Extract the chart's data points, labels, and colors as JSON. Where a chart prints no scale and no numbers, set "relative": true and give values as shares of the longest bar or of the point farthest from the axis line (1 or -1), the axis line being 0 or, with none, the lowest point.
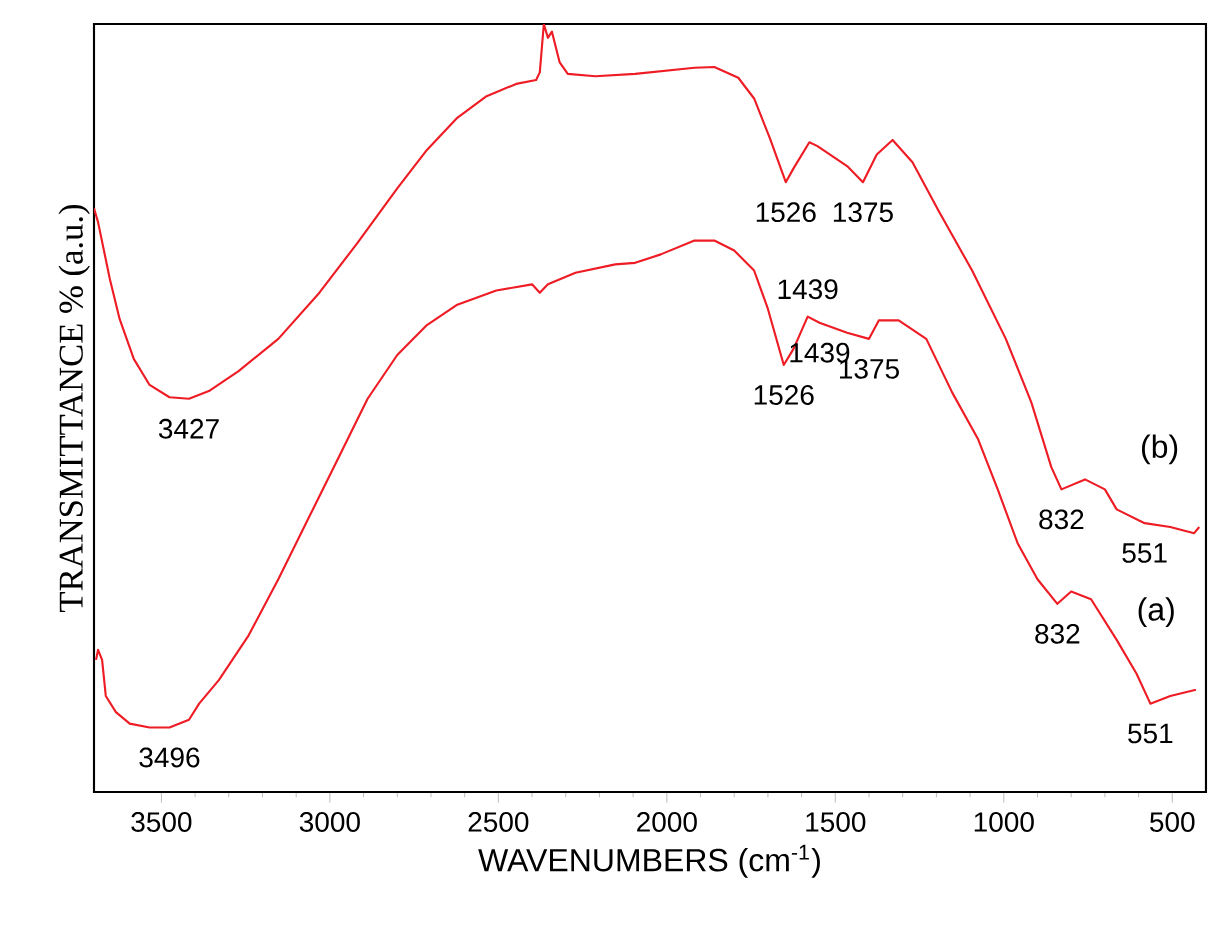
{
  "chart_data": {
    "type": "line",
    "relative": true,
    "xlabel": "WAVENUMBERS (cm$^{-1}$)",
    "ylabel": "TRANSMITTANCE % (a.u.)",
    "xlim": [
      3700,
      400
    ],
    "xticks": [
      3500,
      3000,
      2500,
      2000,
      1500,
      1000,
      500
    ],
    "series": [
      {
        "name": "(b)",
        "color": "#ee1c24",
        "x": [
          3700,
          3688,
          3653,
          3624,
          3582,
          3535,
          3476,
          3418,
          3359,
          3271,
          3153,
          3035,
          2918,
          2800,
          2712,
          2624,
          2535,
          2447,
          2388,
          2377,
          2365,
          2353,
          2341,
          2318,
          2294,
          2212,
          2094,
          1918,
          1859,
          1788,
          1741,
          1694,
          1647,
          1624,
          1577,
          1553,
          1465,
          1418,
          1377,
          1330,
          1271,
          1194,
          1094,
          994,
          918,
          859,
          829,
          759,
          700,
          665,
          582,
          506,
          435,
          420
        ],
        "values": [
          0.76,
          0.742,
          0.668,
          0.616,
          0.564,
          0.53,
          0.514,
          0.512,
          0.522,
          0.548,
          0.59,
          0.648,
          0.715,
          0.786,
          0.836,
          0.877,
          0.906,
          0.922,
          0.927,
          0.937,
          1.0,
          0.982,
          0.99,
          0.95,
          0.935,
          0.932,
          0.935,
          0.943,
          0.944,
          0.93,
          0.903,
          0.851,
          0.794,
          0.812,
          0.846,
          0.841,
          0.815,
          0.794,
          0.83,
          0.849,
          0.82,
          0.757,
          0.679,
          0.59,
          0.507,
          0.423,
          0.394,
          0.407,
          0.394,
          0.368,
          0.35,
          0.345,
          0.337,
          0.345
        ]
      },
      {
        "name": "(a)",
        "color": "#ee1c24",
        "x": [
          3694,
          3688,
          3676,
          3665,
          3635,
          3594,
          3535,
          3476,
          3418,
          3388,
          3329,
          3241,
          3153,
          3065,
          2977,
          2888,
          2800,
          2712,
          2624,
          2506,
          2400,
          2377,
          2353,
          2271,
          2153,
          2094,
          2018,
          1918,
          1859,
          1800,
          1741,
          1700,
          1653,
          1624,
          1582,
          1547,
          1465,
          1400,
          1371,
          1312,
          1230,
          1153,
          1077,
          1018,
          959,
          900,
          841,
          800,
          741,
          665,
          606,
          565,
          506,
          430
        ],
        "values": [
          0.172,
          0.185,
          0.172,
          0.125,
          0.104,
          0.089,
          0.084,
          0.084,
          0.094,
          0.115,
          0.146,
          0.204,
          0.277,
          0.355,
          0.433,
          0.512,
          0.569,
          0.608,
          0.634,
          0.653,
          0.661,
          0.65,
          0.661,
          0.676,
          0.687,
          0.689,
          0.7,
          0.718,
          0.718,
          0.705,
          0.679,
          0.629,
          0.556,
          0.577,
          0.619,
          0.611,
          0.598,
          0.59,
          0.614,
          0.614,
          0.59,
          0.52,
          0.46,
          0.394,
          0.324,
          0.277,
          0.245,
          0.261,
          0.251,
          0.198,
          0.154,
          0.115,
          0.125,
          0.133
        ]
      }
    ],
    "annotations": [
      {
        "text": "3427",
        "x": 3418,
        "y": 0.512
      },
      {
        "text": "3496",
        "x": 3476,
        "y": 0.084
      },
      {
        "text": "1526",
        "x": 1647,
        "y": 0.794
      },
      {
        "text": "1375",
        "x": 1418,
        "y": 0.794
      },
      {
        "text": "1439",
        "x": 1582,
        "y": 0.619
      },
      {
        "text": "1439",
        "x": 1547,
        "y": 0.611
      },
      {
        "text": "1526",
        "x": 1653,
        "y": 0.556
      },
      {
        "text": "1375",
        "x": 1400,
        "y": 0.59
      },
      {
        "text": "551",
        "x": 582,
        "y": 0.35
      },
      {
        "text": "832",
        "x": 829,
        "y": 0.394
      },
      {
        "text": "832",
        "x": 841,
        "y": 0.245
      },
      {
        "text": "551",
        "x": 565,
        "y": 0.115
      }
    ]
  }
}
